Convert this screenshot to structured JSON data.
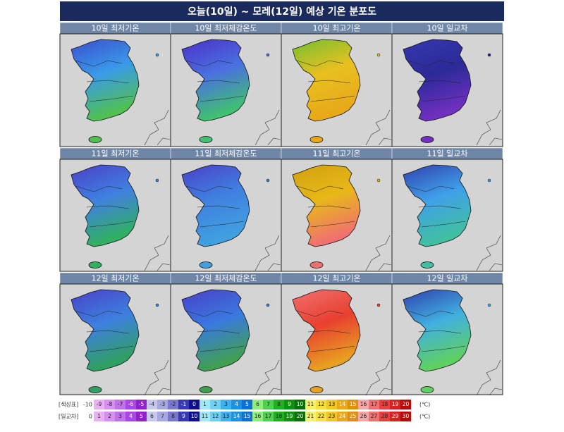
{
  "header": {
    "title": "오늘(10일) ~ 모레(12일) 예상 기온 분포도"
  },
  "panels": [
    "10일 최저기온",
    "10일 최저체감온도",
    "10일 최고기온",
    "10일 일교차",
    "11일 최저기온",
    "11일 최저체감온도",
    "11일 최고기온",
    "11일 일교차",
    "12일 최저기온",
    "12일 최저체감온도",
    "12일 최고기온",
    "12일 일교차"
  ],
  "legend": {
    "rows": [
      {
        "label": "[색상표]",
        "first": -10,
        "unit": "(℃)",
        "cells": [
          -9,
          -8,
          -7,
          -6,
          -5,
          -4,
          -3,
          -2,
          -1,
          0,
          1,
          2,
          3,
          4,
          5,
          6,
          7,
          8,
          9,
          10,
          11,
          12,
          13,
          14,
          15,
          16,
          17,
          18,
          19,
          20
        ],
        "colors": [
          "#eab0f5",
          "#d690f0",
          "#c070e8",
          "#a848e0",
          "#9020d0",
          "#c8c8ee",
          "#a8a8e0",
          "#7878cc",
          "#3838b0",
          "#10108a",
          "#a0e8f8",
          "#70d0f4",
          "#40b0ee",
          "#2090e0",
          "#1070d0",
          "#90ee80",
          "#50d050",
          "#20b020",
          "#109010",
          "#087008",
          "#f8f070",
          "#f8e040",
          "#f0c820",
          "#e8a818",
          "#e09010",
          "#f8a8a8",
          "#f07070",
          "#e84040",
          "#d82020",
          "#b80808"
        ]
      },
      {
        "label": "[일교차]",
        "first": 0,
        "unit": "(℃)",
        "cells": [
          1,
          2,
          3,
          4,
          5,
          6,
          7,
          8,
          9,
          10,
          11,
          12,
          13,
          14,
          15,
          16,
          17,
          18,
          19,
          20,
          21,
          22,
          23,
          24,
          25,
          26,
          27,
          28,
          29,
          30
        ],
        "colors": [
          "#eab0f5",
          "#d690f0",
          "#c070e8",
          "#a848e0",
          "#9020d0",
          "#c8c8ee",
          "#a8a8e0",
          "#7878cc",
          "#3838b0",
          "#10108a",
          "#a0e8f8",
          "#70d0f4",
          "#40b0ee",
          "#2090e0",
          "#1070d0",
          "#90ee80",
          "#50d050",
          "#20b020",
          "#109010",
          "#087008",
          "#f8f070",
          "#f8e040",
          "#f0c820",
          "#e8a818",
          "#e09010",
          "#f8a8a8",
          "#f07070",
          "#e84040",
          "#d82020",
          "#b80808"
        ]
      }
    ]
  }
}
